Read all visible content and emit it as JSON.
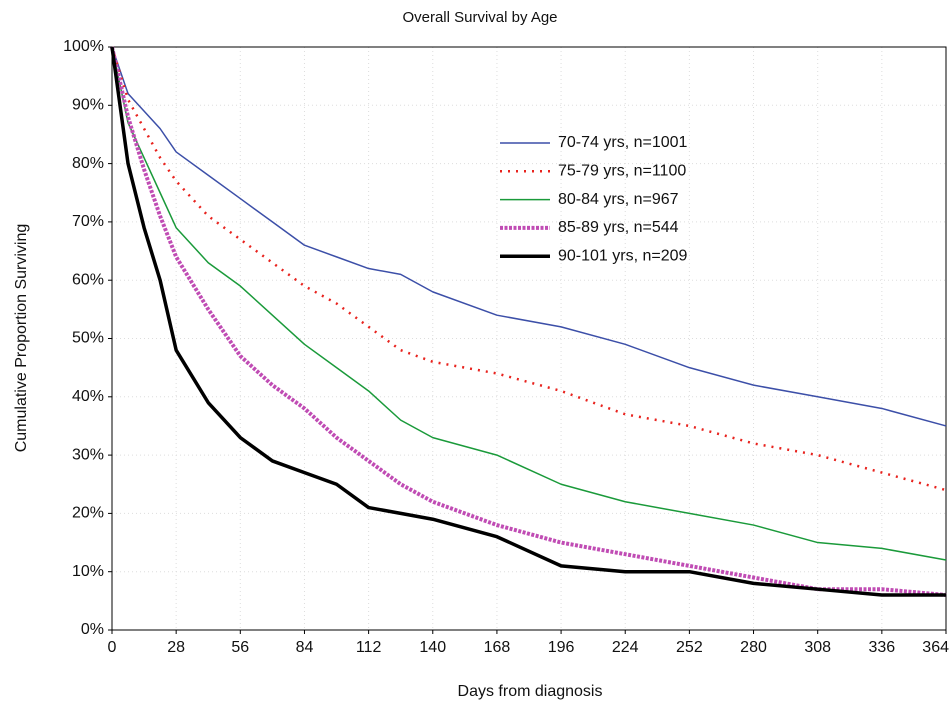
{
  "chart_data": {
    "type": "line",
    "title": "Overall Survival by Age",
    "x_label": "Days from diagnosis",
    "y_label": "Cumulative Proportion Surviving",
    "x": [
      0,
      7,
      14,
      21,
      28,
      42,
      56,
      70,
      84,
      98,
      112,
      126,
      140,
      168,
      196,
      224,
      252,
      280,
      308,
      336,
      364
    ],
    "series": [
      {
        "name": "70-74 yrs, n=1001",
        "color": "#3c4fa8",
        "values": [
          100,
          92,
          89,
          86,
          82,
          78,
          74,
          70,
          66,
          64,
          62,
          61,
          58,
          54,
          52,
          49,
          45,
          42,
          40,
          38,
          35
        ]
      },
      {
        "name": "75-79 yrs, n=1100",
        "color": "#e8231e",
        "values": [
          100,
          91,
          86,
          81,
          77,
          71,
          67,
          63,
          59,
          56,
          52,
          48,
          46,
          44,
          41,
          37,
          35,
          32,
          30,
          27,
          24
        ]
      },
      {
        "name": "80-84 yrs, n=967",
        "color": "#1a9a3a",
        "values": [
          100,
          87,
          81,
          75,
          69,
          63,
          59,
          54,
          49,
          45,
          41,
          36,
          33,
          30,
          25,
          22,
          20,
          18,
          15,
          14,
          12
        ]
      },
      {
        "name": "85-89 yrs, n=544",
        "color": "#c04cb4",
        "values": [
          100,
          88,
          79,
          71,
          64,
          55,
          47,
          42,
          38,
          33,
          29,
          25,
          22,
          18,
          15,
          13,
          11,
          9,
          7,
          7,
          6
        ]
      },
      {
        "name": "90-101 yrs, n=209",
        "color": "#000000",
        "values": [
          100,
          80,
          69,
          60,
          48,
          39,
          33,
          29,
          27,
          25,
          21,
          20,
          19,
          16,
          11,
          10,
          10,
          8,
          7,
          6,
          6
        ]
      }
    ],
    "xlim": [
      0,
      364
    ],
    "xticks": [
      0,
      28,
      56,
      84,
      112,
      140,
      168,
      196,
      224,
      252,
      280,
      308,
      336,
      364
    ],
    "ylim": [
      0,
      100
    ],
    "yticks": [
      {
        "value": 0,
        "label": "0%"
      },
      {
        "value": 10,
        "label": "10%"
      },
      {
        "value": 20,
        "label": "20%"
      },
      {
        "value": 30,
        "label": "30%"
      },
      {
        "value": 40,
        "label": "40%"
      },
      {
        "value": 50,
        "label": "50%"
      },
      {
        "value": 60,
        "label": "60%"
      },
      {
        "value": 70,
        "label": "70%"
      },
      {
        "value": 80,
        "label": "80%"
      },
      {
        "value": 90,
        "label": "90%"
      },
      {
        "value": 100,
        "label": "100%"
      }
    ],
    "grid": true,
    "legend": "upper-right"
  }
}
